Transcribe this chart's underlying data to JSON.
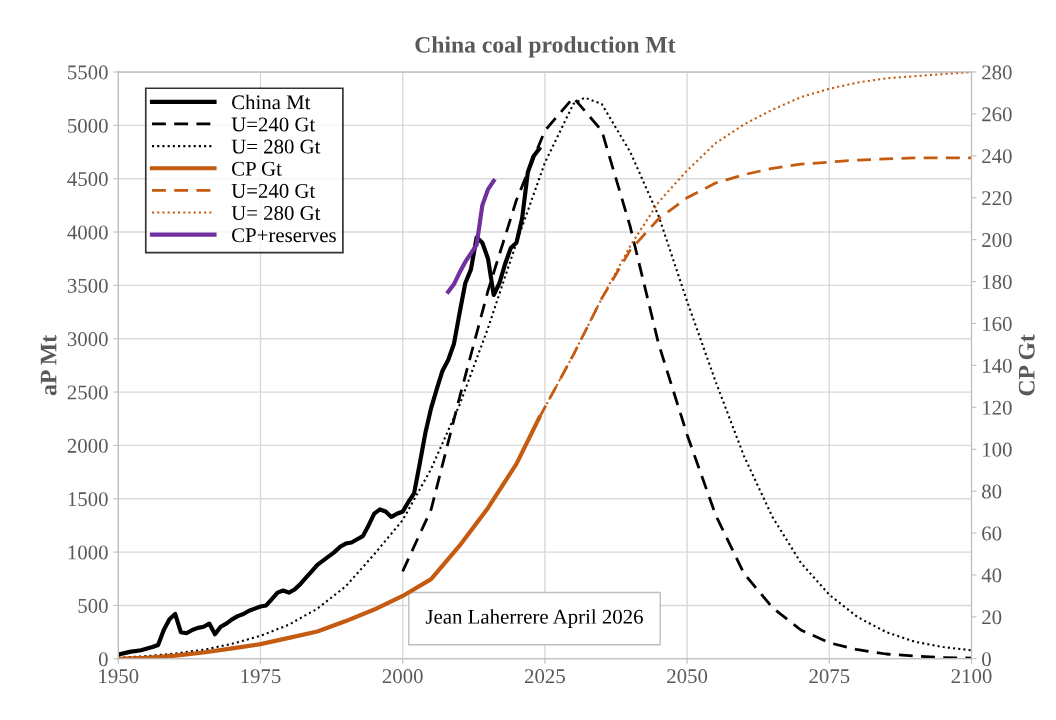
{
  "chart_data": {
    "type": "line",
    "title": "China coal production Mt",
    "ylabel": "aP Mt",
    "y2label": "CP Gt",
    "xlim": [
      1950,
      2100
    ],
    "xticks": [
      1950,
      1975,
      2000,
      2025,
      2050,
      2075,
      2100
    ],
    "ylim": [
      0,
      5500
    ],
    "yticks": [
      0,
      500,
      1000,
      1500,
      2000,
      2500,
      3000,
      3500,
      4000,
      4500,
      5000,
      5500
    ],
    "y2lim": [
      0,
      280
    ],
    "y2ticks": [
      0,
      20,
      40,
      60,
      80,
      100,
      120,
      140,
      160,
      180,
      200,
      220,
      240,
      260,
      280
    ],
    "grid": true,
    "legend": "top left",
    "marker": "none",
    "annotations": [
      "Jean Laherrere April 2026"
    ],
    "series": [
      {
        "name": "China Mt",
        "color": "#000000",
        "line_style": "solid",
        "x": [
          1950,
          1952,
          1954,
          1956,
          1957,
          1958,
          1959,
          1960,
          1961,
          1962,
          1963,
          1964,
          1965,
          1966,
          1967,
          1968,
          1969,
          1970,
          1971,
          1972,
          1973,
          1974,
          1975,
          1976,
          1977,
          1978,
          1979,
          1980,
          1981,
          1982,
          1983,
          1984,
          1985,
          1986,
          1987,
          1988,
          1989,
          1990,
          1991,
          1992,
          1993,
          1994,
          1995,
          1996,
          1997,
          1998,
          1999,
          2000,
          2001,
          2002,
          2003,
          2004,
          2005,
          2006,
          2007,
          2008,
          2009,
          2010,
          2011,
          2012,
          2013,
          2014,
          2015,
          2016,
          2017,
          2018,
          2019,
          2020,
          2021,
          2022,
          2023,
          2024
        ],
        "values": [
          40,
          65,
          80,
          110,
          130,
          270,
          370,
          420,
          250,
          240,
          270,
          290,
          300,
          330,
          230,
          300,
          330,
          370,
          400,
          420,
          450,
          470,
          490,
          500,
          560,
          620,
          640,
          620,
          650,
          700,
          760,
          820,
          880,
          920,
          960,
          1000,
          1050,
          1080,
          1090,
          1120,
          1150,
          1250,
          1360,
          1400,
          1380,
          1330,
          1360,
          1380,
          1470,
          1550,
          1830,
          2120,
          2350,
          2530,
          2700,
          2800,
          2950,
          3240,
          3520,
          3650,
          3950,
          3900,
          3750,
          3410,
          3520,
          3700,
          3850,
          3900,
          4130,
          4560,
          4710,
          4780
        ]
      },
      {
        "name": "U=240 Gt",
        "color": "#000000",
        "line_style": "dashed",
        "x": [
          2000,
          2005,
          2010,
          2015,
          2020,
          2025,
          2030,
          2035,
          2040,
          2045,
          2050,
          2055,
          2060,
          2065,
          2070,
          2075,
          2080,
          2085,
          2090,
          2095,
          2100
        ],
        "values": [
          820,
          1400,
          2450,
          3450,
          4300,
          4950,
          5260,
          4950,
          4050,
          2950,
          2100,
          1350,
          800,
          480,
          270,
          150,
          85,
          45,
          25,
          12,
          7
        ]
      },
      {
        "name": "U= 280 Gt",
        "color": "#000000",
        "line_style": "dotted",
        "x": [
          1950,
          1955,
          1960,
          1965,
          1970,
          1975,
          1980,
          1985,
          1990,
          1995,
          2000,
          2005,
          2010,
          2015,
          2020,
          2025,
          2030,
          2032,
          2035,
          2040,
          2045,
          2050,
          2055,
          2060,
          2065,
          2070,
          2075,
          2080,
          2085,
          2090,
          2095,
          2100
        ],
        "values": [
          10,
          25,
          50,
          85,
          140,
          215,
          320,
          470,
          680,
          980,
          1300,
          1780,
          2380,
          3100,
          3900,
          4650,
          5200,
          5260,
          5200,
          4750,
          4150,
          3350,
          2600,
          1900,
          1330,
          900,
          600,
          390,
          250,
          160,
          110,
          80
        ]
      },
      {
        "name": "CP Gt",
        "color": "#c55a11",
        "line_style": "solid",
        "axis": "y2",
        "x": [
          1950,
          1955,
          1960,
          1965,
          1970,
          1975,
          1980,
          1985,
          1990,
          1995,
          2000,
          2005,
          2010,
          2015,
          2020,
          2024
        ],
        "values": [
          0,
          0.5,
          1.5,
          3,
          5,
          7,
          10,
          13,
          18,
          23.5,
          30,
          38,
          54,
          72,
          93,
          115
        ]
      },
      {
        "name": "U=240 Gt",
        "color": "#c55a11",
        "line_style": "dashed",
        "axis": "y2",
        "x": [
          2024,
          2030,
          2035,
          2040,
          2045,
          2050,
          2055,
          2060,
          2065,
          2070,
          2075,
          2080,
          2090,
          2100
        ],
        "values": [
          115,
          145,
          172,
          195,
          210,
          220,
          227,
          231,
          234,
          236,
          237,
          238,
          239,
          239
        ]
      },
      {
        "name": "U= 280 Gt",
        "color": "#c55a11",
        "line_style": "dotted",
        "axis": "y2",
        "x": [
          2024,
          2030,
          2035,
          2040,
          2045,
          2050,
          2055,
          2060,
          2065,
          2070,
          2075,
          2080,
          2085,
          2090,
          2100
        ],
        "values": [
          115,
          145,
          172,
          197,
          218,
          233,
          246,
          255,
          262,
          268,
          272,
          275,
          277,
          278,
          280
        ]
      },
      {
        "name": "CP+reserves",
        "color": "#7030a0",
        "line_style": "solid",
        "x": [
          2008,
          2009,
          2010,
          2011,
          2012,
          2013,
          2014,
          2015,
          2016
        ],
        "values": [
          3440,
          3510,
          3620,
          3720,
          3800,
          3880,
          4250,
          4400,
          4480
        ]
      }
    ]
  }
}
